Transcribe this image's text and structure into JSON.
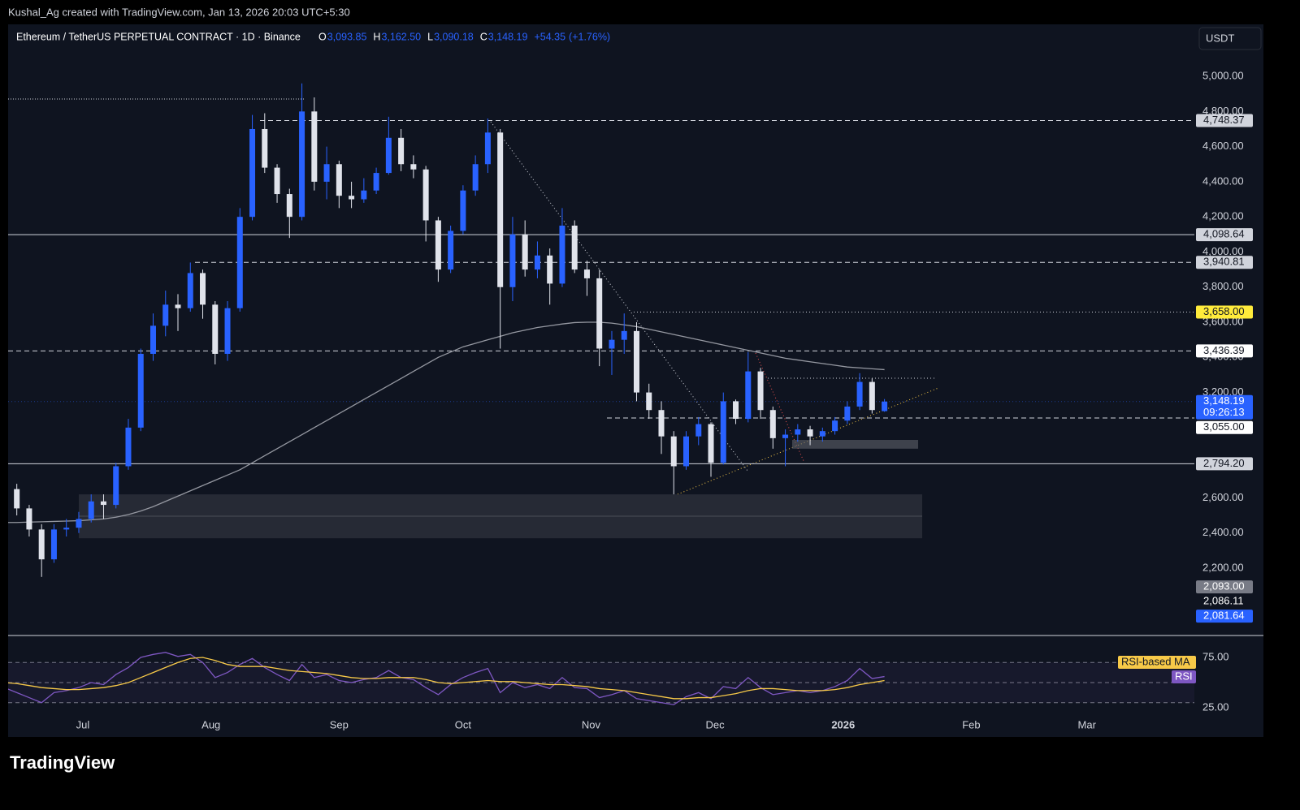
{
  "header": {
    "credit": "Kushal_Ag created with TradingView.com, Jan 13, 2026 20:03 UTC+5:30",
    "symbol": "Ethereum / TetherUS PERPETUAL CONTRACT · 1D · Binance",
    "currency": "USDT",
    "logo": "TradingView"
  },
  "ohlc_legend": [
    {
      "key": "O",
      "value": 3093.85,
      "label": "3,093.85"
    },
    {
      "key": "H",
      "value": 3162.5,
      "label": "3,162.50"
    },
    {
      "key": "L",
      "value": 3090.18,
      "label": "3,090.18"
    },
    {
      "key": "C",
      "value": 3148.19,
      "label": "3,148.19"
    }
  ],
  "change": [
    {
      "value": 54.35,
      "label": "+54.35"
    },
    {
      "value": 1.76,
      "label": "(+1.76%)"
    }
  ],
  "chart_data": [
    {
      "type": "candlestick",
      "up_color": "#2962ff",
      "down_color": "#e0e3eb",
      "candles": [
        [
          2600,
          2700,
          2560,
          2650
        ],
        [
          2650,
          2680,
          2500,
          2540
        ],
        [
          2540,
          2560,
          2380,
          2420
        ],
        [
          2420,
          2450,
          2150,
          2250
        ],
        [
          2250,
          2450,
          2230,
          2420
        ],
        [
          2420,
          2480,
          2380,
          2430
        ],
        [
          2430,
          2520,
          2400,
          2480
        ],
        [
          2480,
          2620,
          2460,
          2580
        ],
        [
          2580,
          2620,
          2480,
          2560
        ],
        [
          2560,
          2800,
          2540,
          2780
        ],
        [
          2780,
          3050,
          2760,
          3000
        ],
        [
          3000,
          3450,
          2980,
          3420
        ],
        [
          3420,
          3650,
          3380,
          3580
        ],
        [
          3580,
          3780,
          3520,
          3700
        ],
        [
          3700,
          3760,
          3550,
          3680
        ],
        [
          3680,
          3940,
          3660,
          3880
        ],
        [
          3880,
          3900,
          3620,
          3700
        ],
        [
          3700,
          3720,
          3360,
          3420
        ],
        [
          3420,
          3720,
          3380,
          3680
        ],
        [
          3680,
          4250,
          3660,
          4200
        ],
        [
          4200,
          4780,
          4180,
          4700
        ],
        [
          4700,
          4790,
          4450,
          4480
        ],
        [
          4480,
          4500,
          4280,
          4330
        ],
        [
          4330,
          4360,
          4080,
          4200
        ],
        [
          4200,
          4960,
          4180,
          4800
        ],
        [
          4800,
          4880,
          4350,
          4400
        ],
        [
          4400,
          4600,
          4300,
          4500
        ],
        [
          4500,
          4520,
          4250,
          4320
        ],
        [
          4320,
          4400,
          4250,
          4300
        ],
        [
          4300,
          4420,
          4280,
          4350
        ],
        [
          4350,
          4480,
          4330,
          4450
        ],
        [
          4450,
          4770,
          4440,
          4650
        ],
        [
          4650,
          4700,
          4460,
          4500
        ],
        [
          4500,
          4550,
          4420,
          4470
        ],
        [
          4470,
          4490,
          4060,
          4180
        ],
        [
          4180,
          4200,
          3830,
          3900
        ],
        [
          3900,
          4150,
          3880,
          4120
        ],
        [
          4120,
          4380,
          4100,
          4350
        ],
        [
          4350,
          4550,
          4320,
          4500
        ],
        [
          4500,
          4760,
          4450,
          4680
        ],
        [
          4680,
          4700,
          3450,
          3800
        ],
        [
          3800,
          4200,
          3720,
          4100
        ],
        [
          4100,
          4180,
          3860,
          3900
        ],
        [
          3900,
          4060,
          3850,
          3980
        ],
        [
          3980,
          4020,
          3700,
          3820
        ],
        [
          3820,
          4250,
          3800,
          4150
        ],
        [
          4150,
          4180,
          3880,
          3900
        ],
        [
          3900,
          3950,
          3750,
          3850
        ],
        [
          3850,
          3900,
          3350,
          3450
        ],
        [
          3450,
          3550,
          3300,
          3500
        ],
        [
          3500,
          3650,
          3420,
          3550
        ],
        [
          3550,
          3600,
          3150,
          3200
        ],
        [
          3200,
          3250,
          3050,
          3100
        ],
        [
          3100,
          3150,
          2850,
          2950
        ],
        [
          2950,
          2980,
          2620,
          2780
        ],
        [
          2780,
          2980,
          2760,
          2950
        ],
        [
          2950,
          3060,
          2900,
          3020
        ],
        [
          3020,
          3030,
          2720,
          2800
        ],
        [
          2800,
          3200,
          2790,
          3150
        ],
        [
          3150,
          3160,
          3020,
          3050
        ],
        [
          3050,
          3430,
          3030,
          3320
        ],
        [
          3320,
          3340,
          3050,
          3100
        ],
        [
          3100,
          3120,
          2880,
          2940
        ],
        [
          2940,
          2990,
          2780,
          2960
        ],
        [
          2960,
          3020,
          2920,
          2990
        ],
        [
          2990,
          3010,
          2900,
          2950
        ],
        [
          2950,
          3000,
          2920,
          2980
        ],
        [
          2980,
          3060,
          2960,
          3040
        ],
        [
          3040,
          3150,
          3020,
          3120
        ],
        [
          3120,
          3310,
          3100,
          3260
        ],
        [
          3260,
          3280,
          3080,
          3100
        ],
        [
          3093.85,
          3162.5,
          3090.18,
          3148.19
        ]
      ],
      "series": [
        {
          "color": "#9598a1",
          "values": [
            2460,
            2460,
            2462,
            2464,
            2466,
            2468,
            2470,
            2475,
            2480,
            2490,
            2505,
            2525,
            2550,
            2580,
            2610,
            2640,
            2670,
            2700,
            2730,
            2760,
            2800,
            2840,
            2880,
            2920,
            2960,
            3000,
            3040,
            3080,
            3120,
            3160,
            3200,
            3240,
            3280,
            3320,
            3360,
            3400,
            3430,
            3460,
            3480,
            3500,
            3520,
            3540,
            3555,
            3570,
            3580,
            3590,
            3598,
            3600,
            3600,
            3595,
            3585,
            3575,
            3560,
            3545,
            3530,
            3515,
            3500,
            3485,
            3470,
            3455,
            3440,
            3425,
            3410,
            3395,
            3385,
            3375,
            3365,
            3355,
            3345,
            3340,
            3335,
            3330
          ]
        }
      ],
      "xlim": [
        0.3,
        96
      ],
      "xticks": [
        {
          "value": 6.33,
          "label": "Jul"
        },
        {
          "value": 16.67,
          "label": "Aug"
        },
        {
          "value": 27,
          "label": "Sep"
        },
        {
          "value": 37,
          "label": "Oct"
        },
        {
          "value": 47.33,
          "label": "Nov"
        },
        {
          "value": 57.33,
          "label": "Dec"
        },
        {
          "value": 67.67,
          "label": "2026"
        },
        {
          "value": 78,
          "label": "Feb"
        },
        {
          "value": 87.33,
          "label": "Mar"
        }
      ],
      "ylim": [
        1821,
        5296
      ],
      "yticks": [
        {
          "value": 5000,
          "label": "5,000.00"
        },
        {
          "value": 4800,
          "label": "4,800.00"
        },
        {
          "value": 4600,
          "label": "4,600.00"
        },
        {
          "value": 4400,
          "label": "4,400.00"
        },
        {
          "value": 4200,
          "label": "4,200.00"
        },
        {
          "value": 4000,
          "label": "4,000.00"
        },
        {
          "value": 3800,
          "label": "3,800.00"
        },
        {
          "value": 3600,
          "label": "3,600.00"
        },
        {
          "value": 3400,
          "label": "3,400.00"
        },
        {
          "value": 3200,
          "label": "3,200.00"
        },
        {
          "value": 3000,
          "label": "3,000.00"
        },
        {
          "value": 2800,
          "label": "2,800.00"
        },
        {
          "value": 2600,
          "label": "2,600.00"
        },
        {
          "value": 2400,
          "label": "2,400.00"
        },
        {
          "value": 2200,
          "label": "2,200.00"
        }
      ],
      "levels": [
        {
          "value": 4748.37,
          "label": "4,748.37",
          "line": "dashed",
          "color": "#d1d4dc"
        },
        {
          "value": 4098.64,
          "label": "4,098.64",
          "line": "solid",
          "color": "#d1d4dc"
        },
        {
          "value": 3940.81,
          "label": "3,940.81",
          "line": "dashed",
          "color": "#d1d4dc"
        },
        {
          "value": 3658,
          "label": "3,658.00",
          "line": "dotted",
          "color": "#ffeb3b"
        },
        {
          "value": 3436.39,
          "label": "3,436.39",
          "line": "dashed",
          "color": "#ffffff"
        },
        {
          "value": 3148.19,
          "label": "3,148.19",
          "countdown": "09:26:13",
          "line": "dotted",
          "color": "#2962ff"
        },
        {
          "value": 3055,
          "label": "3,055.00",
          "line": "dashed",
          "color": "#ffffff"
        },
        {
          "value": 2794.2,
          "label": "2,794.20",
          "line": "solid",
          "color": "#d1d4dc"
        },
        {
          "value": 2093,
          "label": "2,093.00",
          "line": "none",
          "color": "#787b86"
        },
        {
          "value": 2086.11,
          "label": "2,086.11",
          "line": "none",
          "color": "none"
        },
        {
          "value": 2081.64,
          "label": "2,081.64",
          "line": "none",
          "color": "#2962ff"
        }
      ],
      "zones": [
        {
          "low": 2370,
          "high": 2620
        },
        {
          "low": 2880,
          "high": 2930
        }
      ]
    },
    {
      "type": "line",
      "series": [
        {
          "name": "RSI",
          "color": "#7e57c2",
          "values": [
            45,
            40,
            35,
            30,
            40,
            42,
            45,
            50,
            48,
            58,
            65,
            75,
            78,
            80,
            76,
            78,
            70,
            55,
            60,
            68,
            74,
            65,
            58,
            52,
            68,
            55,
            58,
            52,
            50,
            53,
            55,
            62,
            55,
            53,
            45,
            38,
            48,
            55,
            60,
            64,
            40,
            50,
            45,
            48,
            44,
            55,
            45,
            44,
            35,
            38,
            42,
            34,
            32,
            30,
            28,
            36,
            40,
            34,
            46,
            44,
            55,
            45,
            38,
            40,
            42,
            40,
            42,
            46,
            52,
            64,
            54,
            56
          ]
        },
        {
          "name": "RSI-based MA",
          "color": "#f7c948",
          "values": [
            50,
            49,
            47,
            45,
            44,
            43,
            43,
            44,
            45,
            47,
            50,
            55,
            60,
            65,
            70,
            74,
            75,
            72,
            68,
            66,
            66,
            66,
            64,
            62,
            61,
            60,
            59,
            57,
            55,
            54,
            54,
            55,
            55,
            55,
            53,
            50,
            49,
            50,
            51,
            52,
            51,
            51,
            50,
            49,
            48,
            48,
            47,
            46,
            44,
            43,
            42,
            40,
            38,
            36,
            34,
            34,
            35,
            35,
            37,
            39,
            42,
            44,
            44,
            43,
            42,
            42,
            42,
            43,
            45,
            48,
            50,
            52
          ]
        }
      ],
      "ylim": [
        18.5,
        94.4
      ],
      "yticks": [
        {
          "value": 75,
          "label": "75.00"
        },
        {
          "value": 25,
          "label": "25.00"
        }
      ],
      "bands": [
        70,
        50,
        30
      ]
    }
  ]
}
